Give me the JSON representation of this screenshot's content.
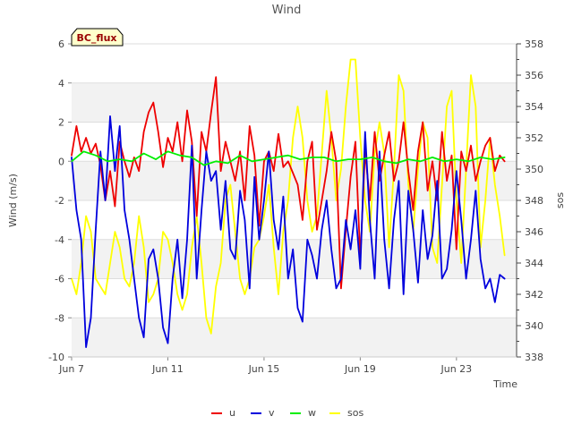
{
  "chart_data": {
    "type": "line",
    "title": "Wind",
    "badge": "BC_flux",
    "xlabel": "Time",
    "ylabel": "Wind (m/s)",
    "y2label": "sos",
    "xlim": [
      0,
      18.5
    ],
    "ylim": [
      -10,
      6
    ],
    "y2lim": [
      338,
      358
    ],
    "x_ticks": [
      {
        "x": 0,
        "label": "Jun 7"
      },
      {
        "x": 4,
        "label": "Jun 11"
      },
      {
        "x": 8,
        "label": "Jun 15"
      },
      {
        "x": 12,
        "label": "Jun 19"
      },
      {
        "x": 16,
        "label": "Jun 23"
      }
    ],
    "y_ticks": [
      -10,
      -8,
      -6,
      -4,
      -2,
      0,
      2,
      4,
      6
    ],
    "y2_ticks": [
      338,
      340,
      342,
      344,
      346,
      348,
      350,
      352,
      354,
      356,
      358
    ],
    "grid": true,
    "legend_position": "bottom",
    "series": [
      {
        "name": "u",
        "axis": "left",
        "color": "#ee0000",
        "x": [
          0.0,
          0.2,
          0.4,
          0.6,
          0.8,
          1.0,
          1.2,
          1.4,
          1.6,
          1.8,
          2.0,
          2.2,
          2.4,
          2.6,
          2.8,
          3.0,
          3.2,
          3.4,
          3.6,
          3.8,
          4.0,
          4.2,
          4.4,
          4.6,
          4.8,
          5.0,
          5.2,
          5.4,
          5.6,
          5.8,
          6.0,
          6.2,
          6.4,
          6.6,
          6.8,
          7.0,
          7.2,
          7.4,
          7.6,
          7.8,
          8.0,
          8.2,
          8.4,
          8.6,
          8.8,
          9.0,
          9.2,
          9.4,
          9.6,
          9.8,
          10.0,
          10.2,
          10.4,
          10.6,
          10.8,
          11.0,
          11.2,
          11.4,
          11.6,
          11.8,
          12.0,
          12.2,
          12.4,
          12.6,
          12.8,
          13.0,
          13.2,
          13.4,
          13.6,
          13.8,
          14.0,
          14.2,
          14.4,
          14.6,
          14.8,
          15.0,
          15.2,
          15.4,
          15.6,
          15.8,
          16.0,
          16.2,
          16.4,
          16.6,
          16.8,
          17.0,
          17.2,
          17.4,
          17.6,
          17.8,
          18.0
        ],
        "y": [
          0.3,
          1.8,
          0.5,
          1.2,
          0.4,
          0.9,
          -0.2,
          -2.0,
          -0.5,
          -2.3,
          1.0,
          0.0,
          -0.8,
          0.2,
          -0.5,
          1.5,
          2.5,
          3.0,
          1.5,
          -0.3,
          1.2,
          0.5,
          2.0,
          0.0,
          2.6,
          1.0,
          -2.8,
          1.5,
          0.5,
          2.5,
          4.3,
          -0.5,
          1.0,
          0.0,
          -1.0,
          0.5,
          -2.0,
          1.8,
          0.3,
          -3.3,
          0.0,
          0.5,
          -0.5,
          1.4,
          -0.3,
          0.0,
          -0.6,
          -1.2,
          -3.0,
          0.0,
          1.0,
          -3.5,
          -2.0,
          -0.5,
          1.5,
          0.0,
          -6.5,
          -3.5,
          -0.8,
          1.0,
          -5.0,
          0.5,
          -2.0,
          1.5,
          -1.0,
          0.3,
          1.5,
          -1.0,
          0.0,
          2.0,
          -0.5,
          -2.5,
          0.5,
          2.0,
          -1.5,
          0.0,
          -2.0,
          1.5,
          -1.0,
          0.3,
          -4.5,
          0.5,
          -0.5,
          0.8,
          -1.0,
          0.0,
          0.8,
          1.2,
          -0.5,
          0.3,
          0.0
        ]
      },
      {
        "name": "v",
        "axis": "left",
        "color": "#0000dd",
        "x": [
          0.0,
          0.2,
          0.4,
          0.6,
          0.8,
          1.0,
          1.2,
          1.4,
          1.6,
          1.8,
          2.0,
          2.2,
          2.4,
          2.6,
          2.8,
          3.0,
          3.2,
          3.4,
          3.6,
          3.8,
          4.0,
          4.2,
          4.4,
          4.6,
          4.8,
          5.0,
          5.2,
          5.4,
          5.6,
          5.8,
          6.0,
          6.2,
          6.4,
          6.6,
          6.8,
          7.0,
          7.2,
          7.4,
          7.6,
          7.8,
          8.0,
          8.2,
          8.4,
          8.6,
          8.8,
          9.0,
          9.2,
          9.4,
          9.6,
          9.8,
          10.0,
          10.2,
          10.4,
          10.6,
          10.8,
          11.0,
          11.2,
          11.4,
          11.6,
          11.8,
          12.0,
          12.2,
          12.4,
          12.6,
          12.8,
          13.0,
          13.2,
          13.4,
          13.6,
          13.8,
          14.0,
          14.2,
          14.4,
          14.6,
          14.8,
          15.0,
          15.2,
          15.4,
          15.6,
          15.8,
          16.0,
          16.2,
          16.4,
          16.6,
          16.8,
          17.0,
          17.2,
          17.4,
          17.6,
          17.8,
          18.0
        ],
        "y": [
          0.2,
          -2.5,
          -4.0,
          -9.5,
          -8.0,
          -3.5,
          0.5,
          -2.0,
          2.3,
          -0.5,
          1.8,
          -2.5,
          -4.0,
          -6.0,
          -8.0,
          -9.0,
          -5.0,
          -4.5,
          -6.0,
          -8.5,
          -9.3,
          -6.0,
          -4.0,
          -7.0,
          -4.0,
          0.8,
          -6.0,
          -2.5,
          0.5,
          -1.0,
          -0.5,
          -3.5,
          -1.0,
          -4.5,
          -5.0,
          -1.5,
          -3.0,
          -6.5,
          -0.8,
          -4.0,
          -2.0,
          0.5,
          -3.0,
          -4.5,
          -1.8,
          -6.0,
          -4.5,
          -7.5,
          -8.2,
          -4.0,
          -4.8,
          -6.0,
          -3.5,
          -2.0,
          -4.5,
          -6.5,
          -6.0,
          -3.0,
          -4.5,
          -2.5,
          -5.5,
          1.5,
          -3.0,
          -6.0,
          0.5,
          -4.0,
          -6.5,
          -3.0,
          -1.0,
          -6.8,
          -1.5,
          -3.5,
          -6.2,
          -2.5,
          -5.0,
          -3.8,
          -1.0,
          -6.0,
          -5.5,
          -3.5,
          -0.5,
          -3.0,
          -6.0,
          -4.0,
          -1.5,
          -5.0,
          -6.5,
          -6.0,
          -7.2,
          -5.8,
          -6.0
        ]
      },
      {
        "name": "w",
        "axis": "left",
        "color": "#00ee00",
        "x": [
          0.0,
          0.5,
          1.0,
          1.5,
          2.0,
          2.5,
          3.0,
          3.5,
          4.0,
          4.5,
          5.0,
          5.5,
          6.0,
          6.5,
          7.0,
          7.5,
          8.0,
          8.5,
          9.0,
          9.5,
          10.0,
          10.5,
          11.0,
          11.5,
          12.0,
          12.5,
          13.0,
          13.5,
          14.0,
          14.5,
          15.0,
          15.5,
          16.0,
          16.5,
          17.0,
          17.5,
          18.0
        ],
        "y": [
          0.0,
          0.5,
          0.3,
          0.0,
          0.1,
          0.0,
          0.4,
          0.1,
          0.5,
          0.3,
          0.2,
          -0.2,
          0.0,
          -0.1,
          0.3,
          0.0,
          0.1,
          0.2,
          0.3,
          0.1,
          0.2,
          0.2,
          0.0,
          0.1,
          0.1,
          0.2,
          0.0,
          -0.1,
          0.1,
          0.0,
          0.2,
          0.0,
          0.1,
          0.0,
          0.2,
          0.1,
          0.2
        ]
      },
      {
        "name": "sos",
        "axis": "right",
        "color": "#ffff00",
        "x": [
          0.0,
          0.2,
          0.4,
          0.6,
          0.8,
          1.0,
          1.2,
          1.4,
          1.6,
          1.8,
          2.0,
          2.2,
          2.4,
          2.6,
          2.8,
          3.0,
          3.2,
          3.4,
          3.6,
          3.8,
          4.0,
          4.2,
          4.4,
          4.6,
          4.8,
          5.0,
          5.2,
          5.4,
          5.6,
          5.8,
          6.0,
          6.2,
          6.4,
          6.6,
          6.8,
          7.0,
          7.2,
          7.4,
          7.6,
          7.8,
          8.0,
          8.2,
          8.4,
          8.6,
          8.8,
          9.0,
          9.2,
          9.4,
          9.6,
          9.8,
          10.0,
          10.2,
          10.4,
          10.6,
          10.8,
          11.0,
          11.2,
          11.4,
          11.6,
          11.8,
          12.0,
          12.2,
          12.4,
          12.6,
          12.8,
          13.0,
          13.2,
          13.4,
          13.6,
          13.8,
          14.0,
          14.2,
          14.4,
          14.6,
          14.8,
          15.0,
          15.2,
          15.4,
          15.6,
          15.8,
          16.0,
          16.2,
          16.4,
          16.6,
          16.8,
          17.0,
          17.2,
          17.4,
          17.6,
          17.8,
          18.0
        ],
        "y": [
          343,
          342,
          344,
          347,
          346,
          343,
          342.5,
          342,
          344,
          346,
          345,
          343,
          342.5,
          344,
          347,
          345,
          341.5,
          342,
          343,
          346,
          345.5,
          344,
          342,
          341,
          342,
          345,
          347,
          344,
          340.5,
          339.5,
          342.5,
          344,
          348,
          349,
          346,
          343,
          342,
          343,
          345,
          345.5,
          347,
          349,
          345,
          342,
          346,
          348,
          352,
          354,
          352,
          348,
          346,
          347,
          351,
          355,
          352,
          348,
          350,
          354,
          357,
          357,
          352,
          348,
          346,
          351,
          353,
          351,
          345,
          350,
          356,
          355,
          349,
          346,
          350,
          353,
          352,
          345,
          344,
          349,
          354,
          355,
          348,
          344,
          350,
          356,
          354,
          345,
          348,
          352,
          349,
          347,
          344.5
        ]
      }
    ]
  }
}
